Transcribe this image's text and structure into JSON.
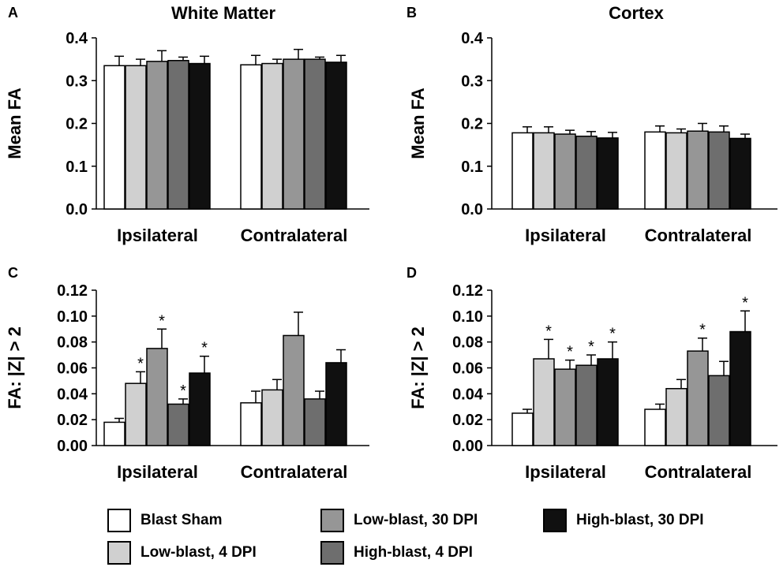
{
  "colors": [
    "#ffffff",
    "#d0d0d0",
    "#969696",
    "#6e6e6e",
    "#101010"
  ],
  "legend": [
    {
      "label": "Blast Sham",
      "color": "#ffffff"
    },
    {
      "label": "Low-blast, 4 DPI",
      "color": "#d0d0d0"
    },
    {
      "label": "Low-blast, 30 DPI",
      "color": "#969696"
    },
    {
      "label": "High-blast, 4 DPI",
      "color": "#6e6e6e"
    },
    {
      "label": "High-blast, 30 DPI",
      "color": "#101010"
    }
  ],
  "chart_data": [
    {
      "panel": "A",
      "type": "bar",
      "title": "White Matter",
      "ylabel": "Mean FA",
      "xlabel": "",
      "ylim": [
        0,
        0.4
      ],
      "yticks": [
        "0.0",
        "0.1",
        "0.2",
        "0.3",
        "0.4"
      ],
      "categories": [
        "Ipsilateral",
        "Contralateral"
      ],
      "series": [
        {
          "name": "Blast Sham",
          "values": [
            0.335,
            0.337
          ],
          "errors": [
            0.022,
            0.022
          ],
          "sig": [
            false,
            false
          ]
        },
        {
          "name": "Low-blast, 4 DPI",
          "values": [
            0.335,
            0.34
          ],
          "errors": [
            0.015,
            0.01
          ],
          "sig": [
            false,
            false
          ]
        },
        {
          "name": "Low-blast, 30 DPI",
          "values": [
            0.345,
            0.35
          ],
          "errors": [
            0.025,
            0.023
          ],
          "sig": [
            false,
            false
          ]
        },
        {
          "name": "High-blast, 4 DPI",
          "values": [
            0.347,
            0.35
          ],
          "errors": [
            0.008,
            0.005
          ],
          "sig": [
            false,
            false
          ]
        },
        {
          "name": "High-blast, 30 DPI",
          "values": [
            0.34,
            0.343
          ],
          "errors": [
            0.017,
            0.016
          ],
          "sig": [
            false,
            false
          ]
        }
      ]
    },
    {
      "panel": "B",
      "type": "bar",
      "title": "Cortex",
      "ylabel": "Mean FA",
      "xlabel": "",
      "ylim": [
        0,
        0.4
      ],
      "yticks": [
        "0.0",
        "0.1",
        "0.2",
        "0.3",
        "0.4"
      ],
      "categories": [
        "Ipsilateral",
        "Contralateral"
      ],
      "series": [
        {
          "name": "Blast Sham",
          "values": [
            0.178,
            0.18
          ],
          "errors": [
            0.014,
            0.014
          ],
          "sig": [
            false,
            false
          ]
        },
        {
          "name": "Low-blast, 4 DPI",
          "values": [
            0.178,
            0.178
          ],
          "errors": [
            0.014,
            0.009
          ],
          "sig": [
            false,
            false
          ]
        },
        {
          "name": "Low-blast, 30 DPI",
          "values": [
            0.175,
            0.182
          ],
          "errors": [
            0.009,
            0.018
          ],
          "sig": [
            false,
            false
          ]
        },
        {
          "name": "High-blast, 4 DPI",
          "values": [
            0.17,
            0.18
          ],
          "errors": [
            0.011,
            0.014
          ],
          "sig": [
            false,
            false
          ]
        },
        {
          "name": "High-blast, 30 DPI",
          "values": [
            0.166,
            0.165
          ],
          "errors": [
            0.013,
            0.01
          ],
          "sig": [
            false,
            false
          ]
        }
      ]
    },
    {
      "panel": "C",
      "type": "bar",
      "title": "",
      "ylabel": "FA: |Z| > 2",
      "xlabel": "",
      "ylim": [
        0,
        0.12
      ],
      "yticks": [
        "0.00",
        "0.02",
        "0.04",
        "0.06",
        "0.08",
        "0.10",
        "0.12"
      ],
      "categories": [
        "Ipsilateral",
        "Contralateral"
      ],
      "series": [
        {
          "name": "Blast Sham",
          "values": [
            0.018,
            0.033
          ],
          "errors": [
            0.003,
            0.009
          ],
          "sig": [
            false,
            false
          ]
        },
        {
          "name": "Low-blast, 4 DPI",
          "values": [
            0.048,
            0.043
          ],
          "errors": [
            0.009,
            0.008
          ],
          "sig": [
            true,
            false
          ]
        },
        {
          "name": "Low-blast, 30 DPI",
          "values": [
            0.075,
            0.085
          ],
          "errors": [
            0.015,
            0.018
          ],
          "sig": [
            true,
            false
          ]
        },
        {
          "name": "High-blast, 4 DPI",
          "values": [
            0.032,
            0.036
          ],
          "errors": [
            0.004,
            0.006
          ],
          "sig": [
            true,
            false
          ]
        },
        {
          "name": "High-blast, 30 DPI",
          "values": [
            0.056,
            0.064
          ],
          "errors": [
            0.013,
            0.01
          ],
          "sig": [
            true,
            false
          ]
        }
      ]
    },
    {
      "panel": "D",
      "type": "bar",
      "title": "",
      "ylabel": "FA: |Z| > 2",
      "xlabel": "",
      "ylim": [
        0,
        0.12
      ],
      "yticks": [
        "0.00",
        "0.02",
        "0.04",
        "0.06",
        "0.08",
        "0.10",
        "0.12"
      ],
      "categories": [
        "Ipsilateral",
        "Contralateral"
      ],
      "series": [
        {
          "name": "Blast Sham",
          "values": [
            0.025,
            0.028
          ],
          "errors": [
            0.003,
            0.004
          ],
          "sig": [
            false,
            false
          ]
        },
        {
          "name": "Low-blast, 4 DPI",
          "values": [
            0.067,
            0.044
          ],
          "errors": [
            0.015,
            0.007
          ],
          "sig": [
            true,
            false
          ]
        },
        {
          "name": "Low-blast, 30 DPI",
          "values": [
            0.059,
            0.073
          ],
          "errors": [
            0.007,
            0.01
          ],
          "sig": [
            true,
            true
          ]
        },
        {
          "name": "High-blast, 4 DPI",
          "values": [
            0.062,
            0.054
          ],
          "errors": [
            0.008,
            0.011
          ],
          "sig": [
            true,
            false
          ]
        },
        {
          "name": "High-blast, 30 DPI",
          "values": [
            0.067,
            0.088
          ],
          "errors": [
            0.013,
            0.016
          ],
          "sig": [
            true,
            true
          ]
        }
      ]
    }
  ]
}
